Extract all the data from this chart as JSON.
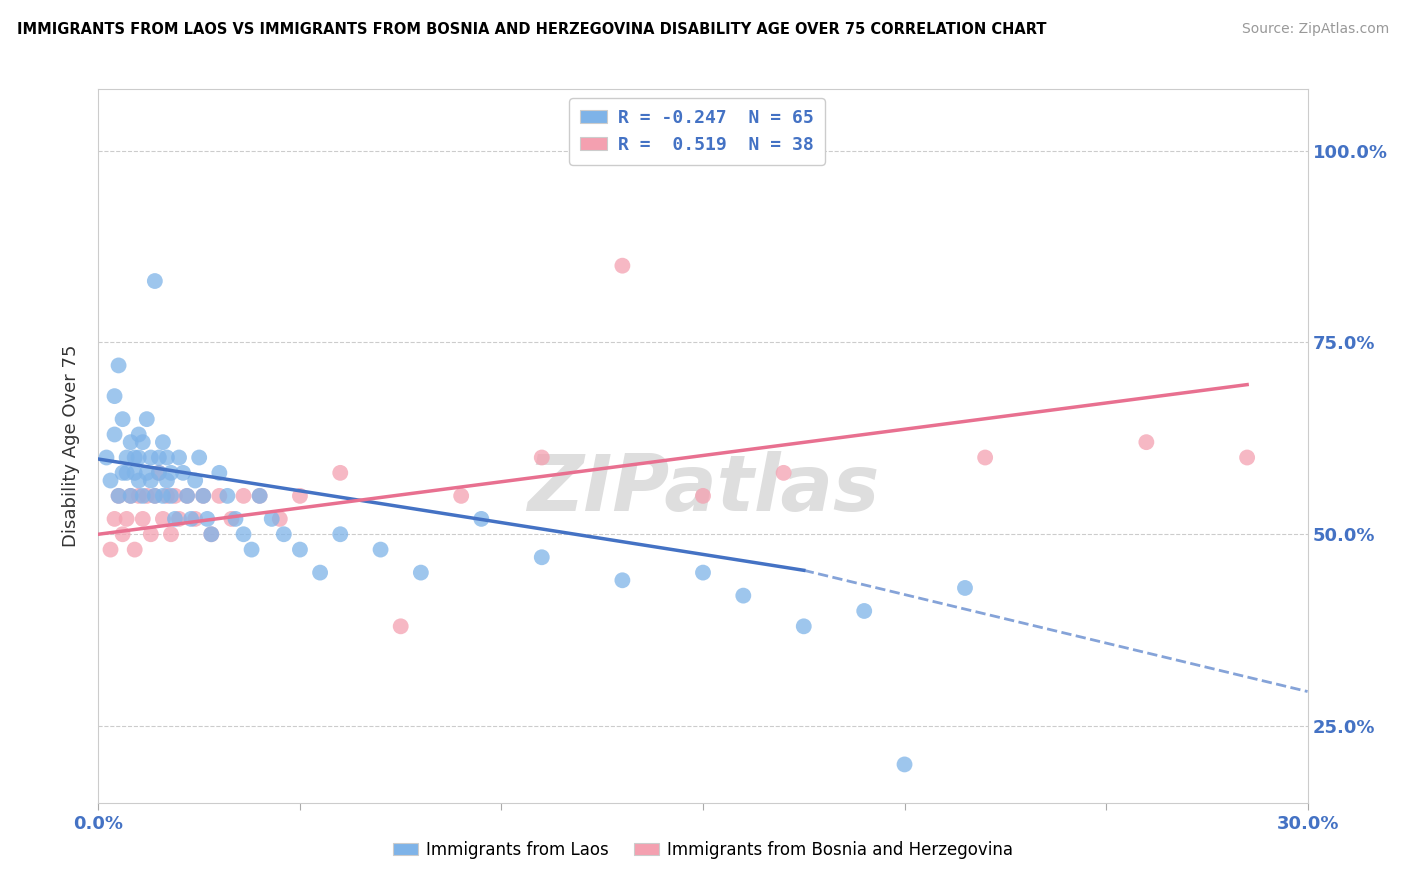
{
  "title": "IMMIGRANTS FROM LAOS VS IMMIGRANTS FROM BOSNIA AND HERZEGOVINA DISABILITY AGE OVER 75 CORRELATION CHART",
  "source": "Source: ZipAtlas.com",
  "xlabel_laos": "Immigrants from Laos",
  "xlabel_bosnia": "Immigrants from Bosnia and Herzegovina",
  "ylabel": "Disability Age Over 75",
  "xlim": [
    0.0,
    0.3
  ],
  "ylim": [
    0.15,
    1.08
  ],
  "xticks": [
    0.0,
    0.05,
    0.1,
    0.15,
    0.2,
    0.25,
    0.3
  ],
  "xtick_labels": [
    "0.0%",
    "",
    "",
    "",
    "",
    "",
    "30.0%"
  ],
  "ytick_labels": [
    "25.0%",
    "50.0%",
    "75.0%",
    "100.0%"
  ],
  "yticks": [
    0.25,
    0.5,
    0.75,
    1.0
  ],
  "laos_R": -0.247,
  "laos_N": 65,
  "bosnia_R": 0.519,
  "bosnia_N": 38,
  "laos_color": "#7EB3E8",
  "bosnia_color": "#F4A0B0",
  "laos_line_color": "#4472C4",
  "bosnia_line_color": "#E87090",
  "watermark_color": "#DEDEDE",
  "laos_scatter_x": [
    0.002,
    0.003,
    0.004,
    0.004,
    0.005,
    0.005,
    0.006,
    0.006,
    0.007,
    0.007,
    0.008,
    0.008,
    0.009,
    0.009,
    0.01,
    0.01,
    0.01,
    0.011,
    0.011,
    0.012,
    0.012,
    0.013,
    0.013,
    0.014,
    0.014,
    0.015,
    0.015,
    0.016,
    0.016,
    0.017,
    0.017,
    0.018,
    0.018,
    0.019,
    0.02,
    0.021,
    0.022,
    0.023,
    0.024,
    0.025,
    0.026,
    0.027,
    0.028,
    0.03,
    0.032,
    0.034,
    0.036,
    0.038,
    0.04,
    0.043,
    0.046,
    0.05,
    0.055,
    0.06,
    0.07,
    0.08,
    0.095,
    0.11,
    0.13,
    0.15,
    0.16,
    0.175,
    0.19,
    0.2,
    0.215
  ],
  "laos_scatter_y": [
    0.6,
    0.57,
    0.63,
    0.68,
    0.55,
    0.72,
    0.58,
    0.65,
    0.6,
    0.58,
    0.62,
    0.55,
    0.6,
    0.58,
    0.63,
    0.57,
    0.6,
    0.55,
    0.62,
    0.58,
    0.65,
    0.6,
    0.57,
    0.55,
    0.83,
    0.6,
    0.58,
    0.55,
    0.62,
    0.6,
    0.57,
    0.55,
    0.58,
    0.52,
    0.6,
    0.58,
    0.55,
    0.52,
    0.57,
    0.6,
    0.55,
    0.52,
    0.5,
    0.58,
    0.55,
    0.52,
    0.5,
    0.48,
    0.55,
    0.52,
    0.5,
    0.48,
    0.45,
    0.5,
    0.48,
    0.45,
    0.52,
    0.47,
    0.44,
    0.45,
    0.42,
    0.38,
    0.4,
    0.2,
    0.43
  ],
  "bosnia_scatter_x": [
    0.003,
    0.004,
    0.005,
    0.006,
    0.007,
    0.008,
    0.009,
    0.01,
    0.011,
    0.012,
    0.013,
    0.014,
    0.015,
    0.016,
    0.017,
    0.018,
    0.019,
    0.02,
    0.022,
    0.024,
    0.026,
    0.028,
    0.03,
    0.033,
    0.036,
    0.04,
    0.045,
    0.05,
    0.06,
    0.075,
    0.09,
    0.11,
    0.13,
    0.15,
    0.17,
    0.22,
    0.26,
    0.285
  ],
  "bosnia_scatter_y": [
    0.48,
    0.52,
    0.55,
    0.5,
    0.52,
    0.55,
    0.48,
    0.55,
    0.52,
    0.55,
    0.5,
    0.55,
    0.58,
    0.52,
    0.55,
    0.5,
    0.55,
    0.52,
    0.55,
    0.52,
    0.55,
    0.5,
    0.55,
    0.52,
    0.55,
    0.55,
    0.52,
    0.55,
    0.58,
    0.38,
    0.55,
    0.6,
    0.85,
    0.55,
    0.58,
    0.6,
    0.62,
    0.6
  ]
}
